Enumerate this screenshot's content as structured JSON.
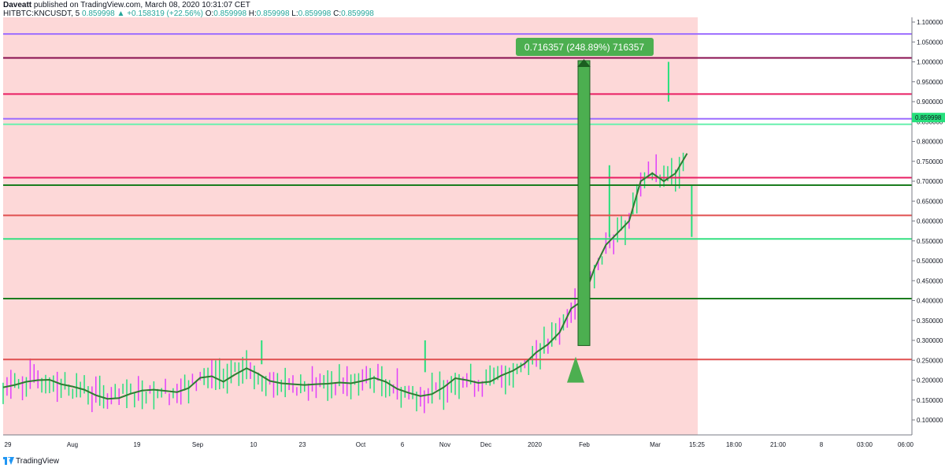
{
  "header": {
    "author": "Daveatt",
    "published": "published on TradingView.com, March 08, 2020 10:31:07 CET",
    "symbol": "HITBTC:KNCUSDT, 5",
    "last": "0.859998",
    "change_arrow": "▲",
    "change": "+0.158319 (+22.56%)",
    "o_label": "O:",
    "o": "0.859998",
    "h_label": "H:",
    "h": "0.859998",
    "l_label": "L:",
    "l": "0.859998",
    "c_label": "C:",
    "c": "0.859998"
  },
  "footer": {
    "brand": "TradingView",
    "logo_icon": "tradingview-logo-icon"
  },
  "colors": {
    "bg_shade": "#fdd8d8",
    "candle_up": "#26e07c",
    "candle_down": "#e040fb",
    "ma_line": "#2e7d32",
    "measure_fill": "#4caf50",
    "measure_label_bg": "#4caf50"
  },
  "chart_data": {
    "type": "line",
    "ylim": [
      0.05,
      1.1
    ],
    "price_scale_labels": [
      "1.100000",
      "1.050000",
      "1.000000",
      "0.950000",
      "0.900000",
      "0.850000",
      "0.800000",
      "0.750000",
      "0.700000",
      "0.650000",
      "0.600000",
      "0.550000",
      "0.500000",
      "0.450000",
      "0.400000",
      "0.350000",
      "0.300000",
      "0.250000",
      "0.200000",
      "0.150000",
      "0.100000"
    ],
    "last_price_label": "0.859998",
    "x_tick_labels": [
      "29",
      "Aug",
      "19",
      "Sep",
      "10",
      "23",
      "Oct",
      "6",
      "Nov",
      "Dec",
      "2020",
      "Feb",
      "Mar",
      "15:25",
      "18:00",
      "21:00",
      "8",
      "03:00",
      "06:00"
    ],
    "series": [
      {
        "values": [
          [
            0,
            0.182
          ],
          [
            1,
            0.188
          ],
          [
            2,
            0.196
          ],
          [
            3,
            0.2
          ],
          [
            4,
            0.201
          ],
          [
            5,
            0.19
          ],
          [
            6,
            0.184
          ],
          [
            7,
            0.176
          ],
          [
            8,
            0.162
          ],
          [
            9,
            0.153
          ],
          [
            10,
            0.155
          ],
          [
            11,
            0.166
          ],
          [
            12,
            0.174
          ],
          [
            13,
            0.176
          ],
          [
            14,
            0.173
          ],
          [
            15,
            0.17
          ],
          [
            16,
            0.18
          ],
          [
            17,
            0.206
          ],
          [
            18,
            0.21
          ],
          [
            19,
            0.196
          ],
          [
            20,
            0.214
          ],
          [
            21,
            0.23
          ],
          [
            22,
            0.216
          ],
          [
            23,
            0.198
          ],
          [
            24,
            0.192
          ],
          [
            25,
            0.19
          ],
          [
            26,
            0.188
          ],
          [
            27,
            0.19
          ],
          [
            28,
            0.191
          ],
          [
            29,
            0.194
          ],
          [
            30,
            0.192
          ],
          [
            31,
            0.198
          ],
          [
            32,
            0.206
          ],
          [
            33,
            0.196
          ],
          [
            34,
            0.178
          ],
          [
            35,
            0.168
          ],
          [
            36,
            0.16
          ],
          [
            37,
            0.165
          ],
          [
            38,
            0.182
          ],
          [
            39,
            0.205
          ],
          [
            40,
            0.2
          ],
          [
            41,
            0.193
          ],
          [
            42,
            0.196
          ],
          [
            43,
            0.212
          ],
          [
            44,
            0.224
          ],
          [
            45,
            0.242
          ],
          [
            46,
            0.27
          ],
          [
            47,
            0.29
          ],
          [
            48,
            0.32
          ],
          [
            49,
            0.38
          ],
          [
            50,
            0.4
          ],
          [
            51,
            0.48
          ],
          [
            52,
            0.54
          ],
          [
            53,
            0.57
          ],
          [
            54,
            0.6
          ],
          [
            55,
            0.7
          ],
          [
            56,
            0.72
          ],
          [
            57,
            0.7
          ],
          [
            58,
            0.72
          ],
          [
            59,
            0.77
          ]
        ]
      }
    ],
    "horizontal_levels": [
      {
        "price": 1.07,
        "color": "#9c6dff"
      },
      {
        "price": 1.01,
        "color": "#880e4f"
      },
      {
        "price": 0.919,
        "color": "#e91e63"
      },
      {
        "price": 0.857,
        "color": "#9c6dff"
      },
      {
        "price": 0.843,
        "color": "#69f0ae"
      },
      {
        "price": 0.709,
        "color": "#e91e63"
      },
      {
        "price": 0.69,
        "color": "#1b7d1f"
      },
      {
        "price": 0.614,
        "color": "#e05050"
      },
      {
        "price": 0.555,
        "color": "#33e080"
      },
      {
        "price": 0.405,
        "color": "#1b7d1f"
      },
      {
        "price": 0.252,
        "color": "#e05050"
      }
    ],
    "measure": {
      "from_price": 0.287,
      "to_price": 1.003,
      "label": "0.716357 (248.89%) 716357"
    }
  }
}
